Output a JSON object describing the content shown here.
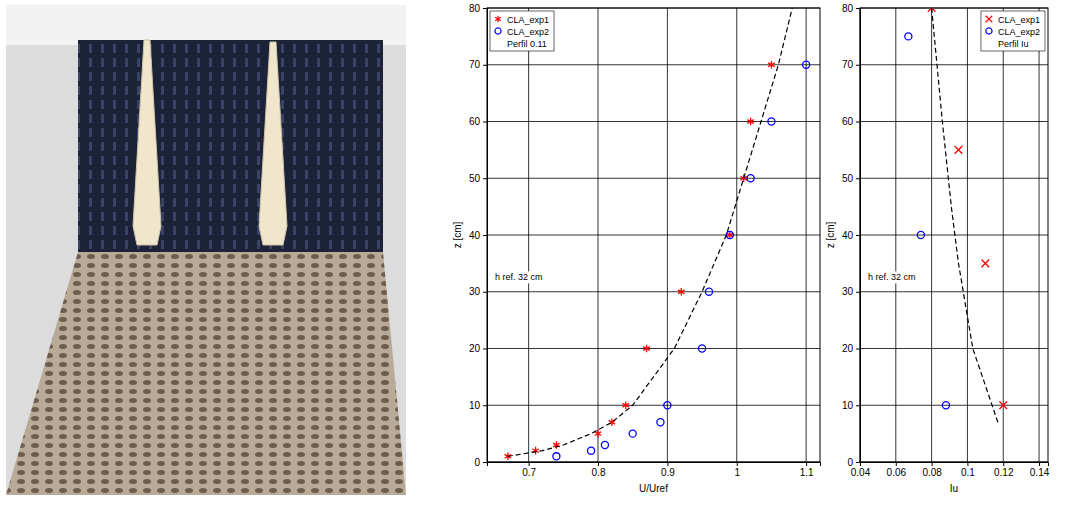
{
  "chart_data": [
    {
      "type": "scatter",
      "xlabel": "U/Uref",
      "ylabel": "z [cm]",
      "xlim": [
        0.64,
        1.12
      ],
      "xticks": [
        0.7,
        0.8,
        0.9,
        1,
        1.1
      ],
      "ylim": [
        0,
        80
      ],
      "yticks": [
        0,
        10,
        20,
        30,
        40,
        50,
        60,
        70,
        80
      ],
      "grid": true,
      "legend": "upper left",
      "annotations": [
        "Perfil 0.11",
        "h ref. 32 cm"
      ],
      "series": [
        {
          "name": "CLA_exp1",
          "type": "scatter",
          "color": "#ff0000",
          "marker": "star",
          "x": [
            0.67,
            0.71,
            0.74,
            0.8,
            0.82,
            0.84,
            0.87,
            0.92,
            0.99,
            1.01,
            1.02,
            1.05
          ],
          "values": [
            1,
            2,
            3,
            5,
            7,
            10,
            20,
            30,
            40,
            50,
            60,
            70
          ]
        },
        {
          "name": "CLA_exp2",
          "type": "scatter",
          "color": "#0000ff",
          "marker": "circle",
          "x": [
            0.74,
            0.79,
            0.81,
            0.85,
            0.89,
            0.9,
            0.95,
            0.96,
            0.99,
            1.02,
            1.05,
            1.1
          ],
          "values": [
            1,
            2,
            3,
            5,
            7,
            10,
            20,
            30,
            40,
            50,
            60,
            70
          ]
        },
        {
          "type": "line",
          "color": "#000000",
          "line_style": "dashed",
          "x": [
            0.67,
            0.72,
            0.75,
            0.79,
            0.82,
            0.85,
            0.88,
            0.91,
            0.95,
            0.985,
            1.01,
            1.035,
            1.06,
            1.08
          ],
          "values": [
            1,
            2,
            3,
            5,
            7,
            10,
            15,
            20,
            30,
            40,
            50,
            60,
            70,
            80
          ]
        }
      ]
    },
    {
      "type": "scatter",
      "xlabel": "Iu",
      "ylabel": "z [cm]",
      "xlim": [
        0.04,
        0.145
      ],
      "xticks": [
        0.04,
        0.06,
        0.08,
        0.1,
        0.12,
        0.14
      ],
      "ylim": [
        0,
        80
      ],
      "yticks": [
        0,
        10,
        20,
        30,
        40,
        50,
        60,
        70,
        80
      ],
      "grid": true,
      "legend": "upper right",
      "annotations": [
        "Perfil Iu",
        "h ref. 32 cm"
      ],
      "series": [
        {
          "name": "CLA_exp1",
          "type": "scatter",
          "color": "#ff0000",
          "marker": "x",
          "x": [
            0.08,
            0.095,
            0.11,
            0.12
          ],
          "values": [
            80,
            55,
            35,
            10
          ]
        },
        {
          "name": "CLA_exp2",
          "type": "scatter",
          "color": "#0000ff",
          "marker": "circle",
          "x": [
            0.067,
            0.074,
            0.088
          ],
          "values": [
            75,
            40,
            10
          ]
        },
        {
          "type": "line",
          "color": "#000000",
          "line_style": "dashed",
          "x": [
            0.117,
            0.103,
            0.095,
            0.091,
            0.086,
            0.08
          ],
          "values": [
            7,
            20,
            35,
            45,
            60,
            80
          ]
        }
      ]
    }
  ]
}
